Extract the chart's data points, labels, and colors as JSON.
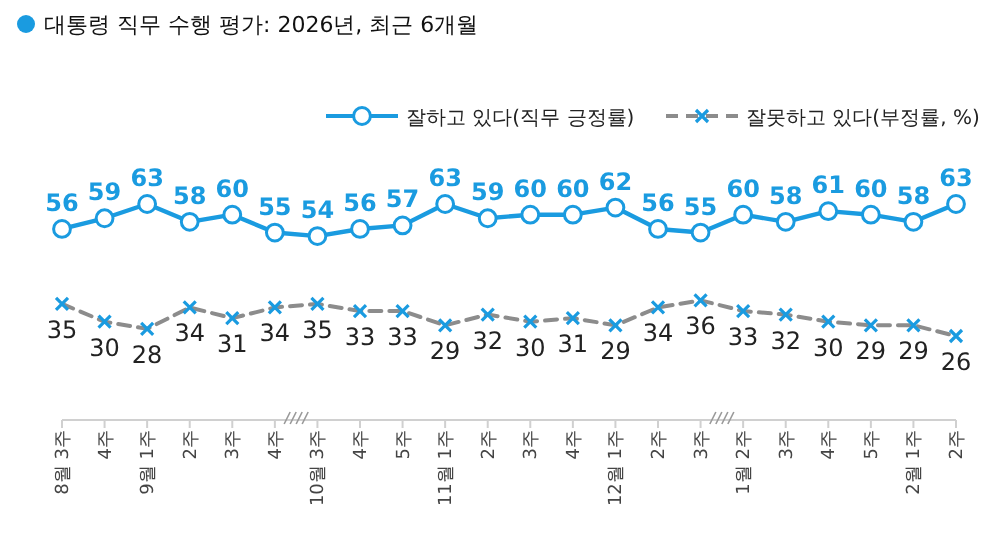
{
  "chart_data": {
    "type": "line",
    "title": "대통령 직무 수행 평가: 2026년, 최근 6개월",
    "categories": [
      "8월 3주",
      "4주",
      "9월 1주",
      "2주",
      "3주",
      "4주",
      "10월 3주",
      "4주",
      "5주",
      "11월 1주",
      "2주",
      "3주",
      "4주",
      "12월 1주",
      "2주",
      "3주",
      "1월 2주",
      "3주",
      "4주",
      "5주",
      "2월 1주",
      "2주"
    ],
    "series": [
      {
        "name": "잘하고 있다(직무 긍정률)",
        "color": "#1a9be0",
        "marker": "circle",
        "line_style": "solid",
        "values": [
          56,
          59,
          63,
          58,
          60,
          55,
          54,
          56,
          57,
          63,
          59,
          60,
          60,
          62,
          56,
          55,
          60,
          58,
          61,
          60,
          58,
          63
        ]
      },
      {
        "name": "잘못하고 있다(부정률, %)",
        "color": "#8c8c8c",
        "marker": "cross",
        "line_style": "dashed",
        "values": [
          35,
          30,
          28,
          34,
          31,
          34,
          35,
          33,
          33,
          29,
          32,
          30,
          31,
          29,
          34,
          36,
          33,
          32,
          30,
          29,
          29,
          26
        ]
      }
    ],
    "data_labels": true,
    "legend": "top right"
  }
}
